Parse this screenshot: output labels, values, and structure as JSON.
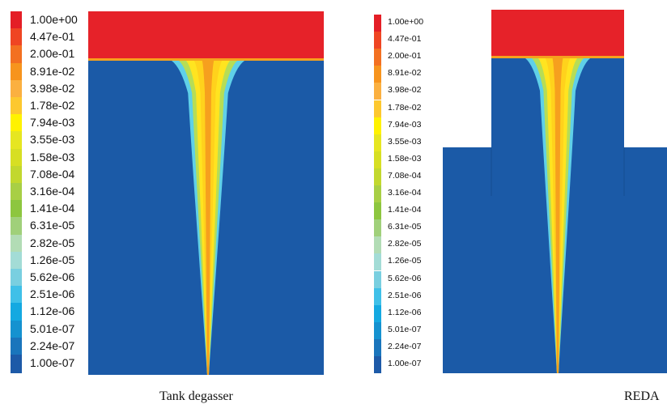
{
  "legend": {
    "left_ticks": [
      "1.00e+00",
      "4.47e-01",
      "2.00e-01",
      "8.91e-02",
      "3.98e-02",
      "1.78e-02",
      "7.94e-03",
      "3.55e-03",
      "1.58e-03",
      "7.08e-04",
      "3.16e-04",
      "1.41e-04",
      "6.31e-05",
      "2.82e-05",
      "1.26e-05",
      "5.62e-06",
      "2.51e-06",
      "1.12e-06",
      "5.01e-07",
      "2.24e-07",
      "1.00e-07"
    ],
    "right_ticks": [
      "1.00e+00",
      "4.47e-01",
      "2.00e-01",
      "8.91e-02",
      "3.98e-02",
      "1.78e-02",
      "7.94e-03",
      "3.55e-03",
      "1.58e-03",
      "7.08e-04",
      "3.16e-04",
      "1.41e-04",
      "6.31e-05",
      "2.82e-05",
      "1.26e-05",
      "5.62e-06",
      "2.51e-06",
      "1.12e-06",
      "5.01e-07",
      "2.24e-07",
      "1.00e-07"
    ],
    "colors": [
      "#e41e26",
      "#ef4523",
      "#f37021",
      "#f7941d",
      "#fbb040",
      "#fdc82f",
      "#fff200",
      "#e6e621",
      "#d7df23",
      "#c2d82e",
      "#a8cf45",
      "#8dc63f",
      "#a0d07a",
      "#b2dcb5",
      "#a3dcd6",
      "#79cfe0",
      "#3fc0e8",
      "#14a9e1",
      "#1592d0",
      "#1a75bc",
      "#1d5aa8"
    ]
  },
  "panels": {
    "bath_color": "#1b5aa7",
    "gas_color": "#e62229",
    "plume_edge_color": "#5fd0e8",
    "plume_mid_color": "#b7dd55",
    "plume_core_color": "#ffe420",
    "plume_hot_color": "#f6a01e"
  },
  "captions": {
    "left": "Tank degasser",
    "right": "REDA"
  }
}
